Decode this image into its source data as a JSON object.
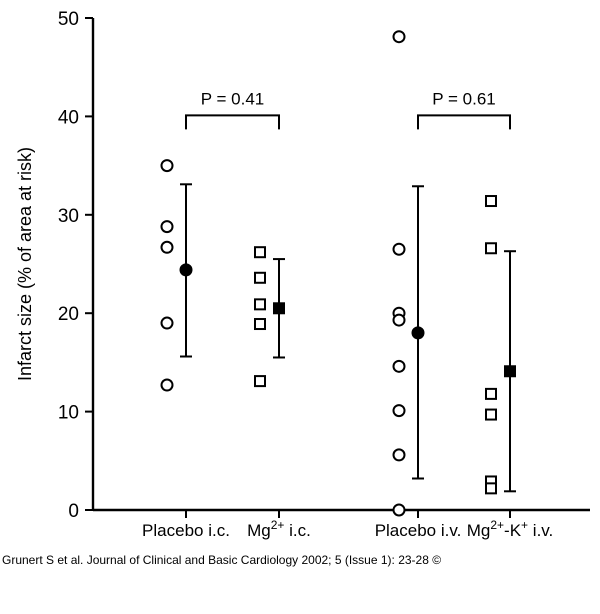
{
  "chart_data": {
    "type": "scatter",
    "ylabel": "Infarct size (% of area at risk)",
    "xlabel": "",
    "ylim": [
      0,
      50
    ],
    "yticks": [
      0,
      10,
      20,
      30,
      40,
      50
    ],
    "categories": [
      {
        "label": "Placebo i.c.",
        "label_parts": [
          "Placebo i.c."
        ]
      },
      {
        "label": "Mg2+ i.c.",
        "label_parts": [
          "Mg",
          "2+",
          " i.c."
        ]
      },
      {
        "label": "Placebo i.v.",
        "label_parts": [
          "Placebo i.v."
        ]
      },
      {
        "label": "Mg2+-K+ i.v.",
        "label_parts": [
          "Mg",
          "2+",
          "-K",
          "+",
          " i.v."
        ]
      }
    ],
    "series": [
      {
        "category": 0,
        "marker": "circle",
        "points": [
          35.0,
          28.8,
          26.7,
          19.0,
          12.7
        ],
        "mean": 24.4,
        "err_low": 15.6,
        "err_high": 33.1
      },
      {
        "category": 1,
        "marker": "square",
        "points": [
          26.2,
          23.6,
          20.9,
          18.9,
          13.1
        ],
        "mean": 20.5,
        "err_low": 15.5,
        "err_high": 25.5
      },
      {
        "category": 2,
        "marker": "circle",
        "points": [
          48.1,
          26.5,
          20.0,
          19.3,
          14.6,
          10.1,
          5.6,
          0.0
        ],
        "mean": 18.0,
        "err_low": 3.2,
        "err_high": 32.9
      },
      {
        "category": 3,
        "marker": "square",
        "points": [
          31.4,
          26.6,
          11.8,
          9.7,
          2.9,
          2.2
        ],
        "mean": 14.1,
        "err_low": 1.9,
        "err_high": 26.3
      }
    ],
    "annotations": [
      {
        "text": "P = 0.41",
        "from_category": 0,
        "to_category": 1,
        "y": 40.1
      },
      {
        "text": "P = 0.61",
        "from_category": 2,
        "to_category": 3,
        "y": 40.1
      }
    ]
  },
  "caption": "Grunert S et al. Journal of Clinical and Basic Cardiology 2002; 5 (Issue 1): 23-28 ©"
}
